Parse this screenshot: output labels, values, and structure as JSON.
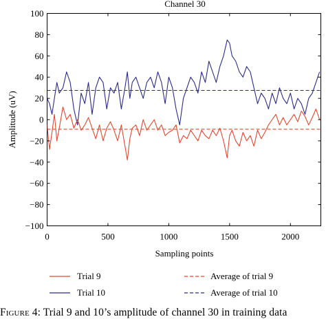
{
  "chart_data": {
    "type": "line",
    "title": "Channel 30",
    "xlabel": "Sampling points",
    "ylabel": "Amplitude (uV)",
    "xlim": [
      0,
      2250
    ],
    "ylim": [
      -100,
      100
    ],
    "xticks": [
      0,
      500,
      1000,
      1500,
      2000
    ],
    "yticks": [
      -100,
      -80,
      -60,
      -40,
      -20,
      0,
      20,
      40,
      60,
      80,
      100
    ],
    "grid": false,
    "legend_position": "bottom",
    "series": [
      {
        "name": "Trial 9",
        "color": "#e8462a",
        "style": "solid",
        "x": [
          0,
          20,
          40,
          60,
          80,
          100,
          130,
          160,
          190,
          220,
          250,
          280,
          310,
          340,
          370,
          400,
          430,
          460,
          490,
          520,
          550,
          580,
          610,
          640,
          660,
          680,
          700,
          730,
          760,
          790,
          820,
          850,
          880,
          910,
          940,
          970,
          1000,
          1030,
          1060,
          1090,
          1120,
          1150,
          1180,
          1210,
          1240,
          1270,
          1300,
          1330,
          1360,
          1390,
          1420,
          1450,
          1480,
          1500,
          1520,
          1550,
          1580,
          1610,
          1640,
          1670,
          1700,
          1730,
          1760,
          1790,
          1820,
          1850,
          1880,
          1910,
          1940,
          1970,
          2000,
          2030,
          2060,
          2090,
          2120,
          2150,
          2180,
          2210,
          2240
        ],
        "y": [
          -5,
          -28,
          -12,
          5,
          -20,
          -8,
          12,
          0,
          5,
          -8,
          0,
          -10,
          -5,
          2,
          -8,
          -18,
          -5,
          -20,
          -8,
          -2,
          -10,
          -20,
          -5,
          -25,
          -38,
          -18,
          -8,
          -5,
          -15,
          0,
          -10,
          -5,
          0,
          -10,
          -5,
          -15,
          -12,
          -10,
          -5,
          -22,
          -15,
          -18,
          -10,
          -15,
          -20,
          -10,
          -15,
          -18,
          -10,
          -15,
          -8,
          -20,
          -36,
          -15,
          -10,
          -20,
          -25,
          -12,
          -20,
          -15,
          -25,
          -10,
          -18,
          -12,
          -5,
          0,
          5,
          -5,
          2,
          -5,
          0,
          5,
          -2,
          8,
          3,
          -5,
          2,
          10,
          0
        ]
      },
      {
        "name": "Trial 10",
        "color": "#2a2a8a",
        "style": "solid",
        "x": [
          0,
          20,
          40,
          60,
          80,
          100,
          130,
          160,
          190,
          220,
          250,
          280,
          310,
          340,
          370,
          400,
          430,
          460,
          490,
          520,
          550,
          580,
          610,
          640,
          660,
          680,
          700,
          730,
          760,
          790,
          820,
          850,
          880,
          910,
          940,
          970,
          1000,
          1030,
          1060,
          1090,
          1120,
          1150,
          1180,
          1210,
          1240,
          1270,
          1300,
          1330,
          1360,
          1390,
          1420,
          1450,
          1480,
          1500,
          1520,
          1550,
          1580,
          1610,
          1640,
          1670,
          1700,
          1730,
          1760,
          1790,
          1820,
          1850,
          1880,
          1910,
          1940,
          1970,
          2000,
          2030,
          2060,
          2090,
          2120,
          2150,
          2180,
          2210,
          2240
        ],
        "y": [
          20,
          15,
          5,
          20,
          35,
          25,
          30,
          45,
          35,
          10,
          -5,
          25,
          15,
          35,
          5,
          30,
          40,
          35,
          10,
          30,
          25,
          35,
          10,
          30,
          45,
          20,
          35,
          40,
          30,
          20,
          35,
          40,
          30,
          45,
          35,
          15,
          40,
          30,
          10,
          -5,
          20,
          30,
          40,
          35,
          25,
          45,
          35,
          55,
          45,
          35,
          50,
          60,
          75,
          72,
          60,
          55,
          45,
          40,
          50,
          45,
          30,
          15,
          25,
          20,
          10,
          25,
          15,
          30,
          20,
          15,
          25,
          10,
          20,
          15,
          5,
          20,
          25,
          35,
          45
        ]
      },
      {
        "name": "Average of trial 9",
        "color": "#e8462a",
        "style": "dashed",
        "x": [
          0,
          2250
        ],
        "y": [
          -9,
          -9
        ]
      },
      {
        "name": "Average of trial 10",
        "color": "#2a2a8a",
        "style": "dashed",
        "x": [
          0,
          2250
        ],
        "y": [
          27.5,
          27.5
        ]
      }
    ]
  },
  "caption": {
    "lead": "Figure 4:",
    "text": "Trial 9 and 10’s amplitude of channel 30 in training data"
  }
}
